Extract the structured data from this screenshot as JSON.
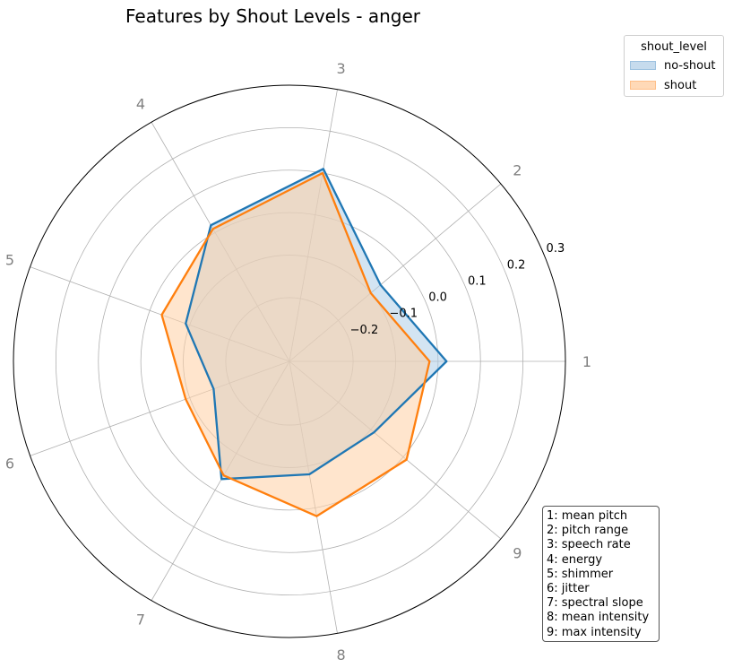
{
  "chart_data": {
    "type": "radar",
    "title": "Features by Shout Levels - anger",
    "axes": [
      "1",
      "2",
      "3",
      "4",
      "5",
      "6",
      "7",
      "8",
      "9"
    ],
    "radial_ticks": [
      "−0.2",
      "−0.1",
      "0.0",
      "0.1",
      "0.2",
      "0.3"
    ],
    "radial_tick_values": [
      -0.2,
      -0.1,
      0.0,
      0.1,
      0.2,
      0.3
    ],
    "rlim": [
      -0.35,
      0.3
    ],
    "grid": true,
    "legend": {
      "title": "shout_level",
      "placement": "upper-right-outside"
    },
    "series": [
      {
        "name": "no-shout",
        "color": "#1f77b4",
        "fill": "#aecde8",
        "values": [
          0.02,
          -0.07,
          0.11,
          0.02,
          -0.09,
          -0.16,
          -0.03,
          -0.08,
          -0.09
        ]
      },
      {
        "name": "shout",
        "color": "#ff7f0e",
        "fill": "#ffcfa4",
        "values": [
          -0.02,
          -0.1,
          0.1,
          0.01,
          -0.03,
          -0.09,
          -0.04,
          0.02,
          0.01
        ]
      }
    ],
    "feature_key": [
      "1: mean pitch",
      "2: pitch range",
      "3: speech rate",
      "4: energy",
      "5: shimmer",
      "6: jitter",
      "7: spectral slope",
      "8: mean intensity",
      "9: max intensity"
    ]
  }
}
